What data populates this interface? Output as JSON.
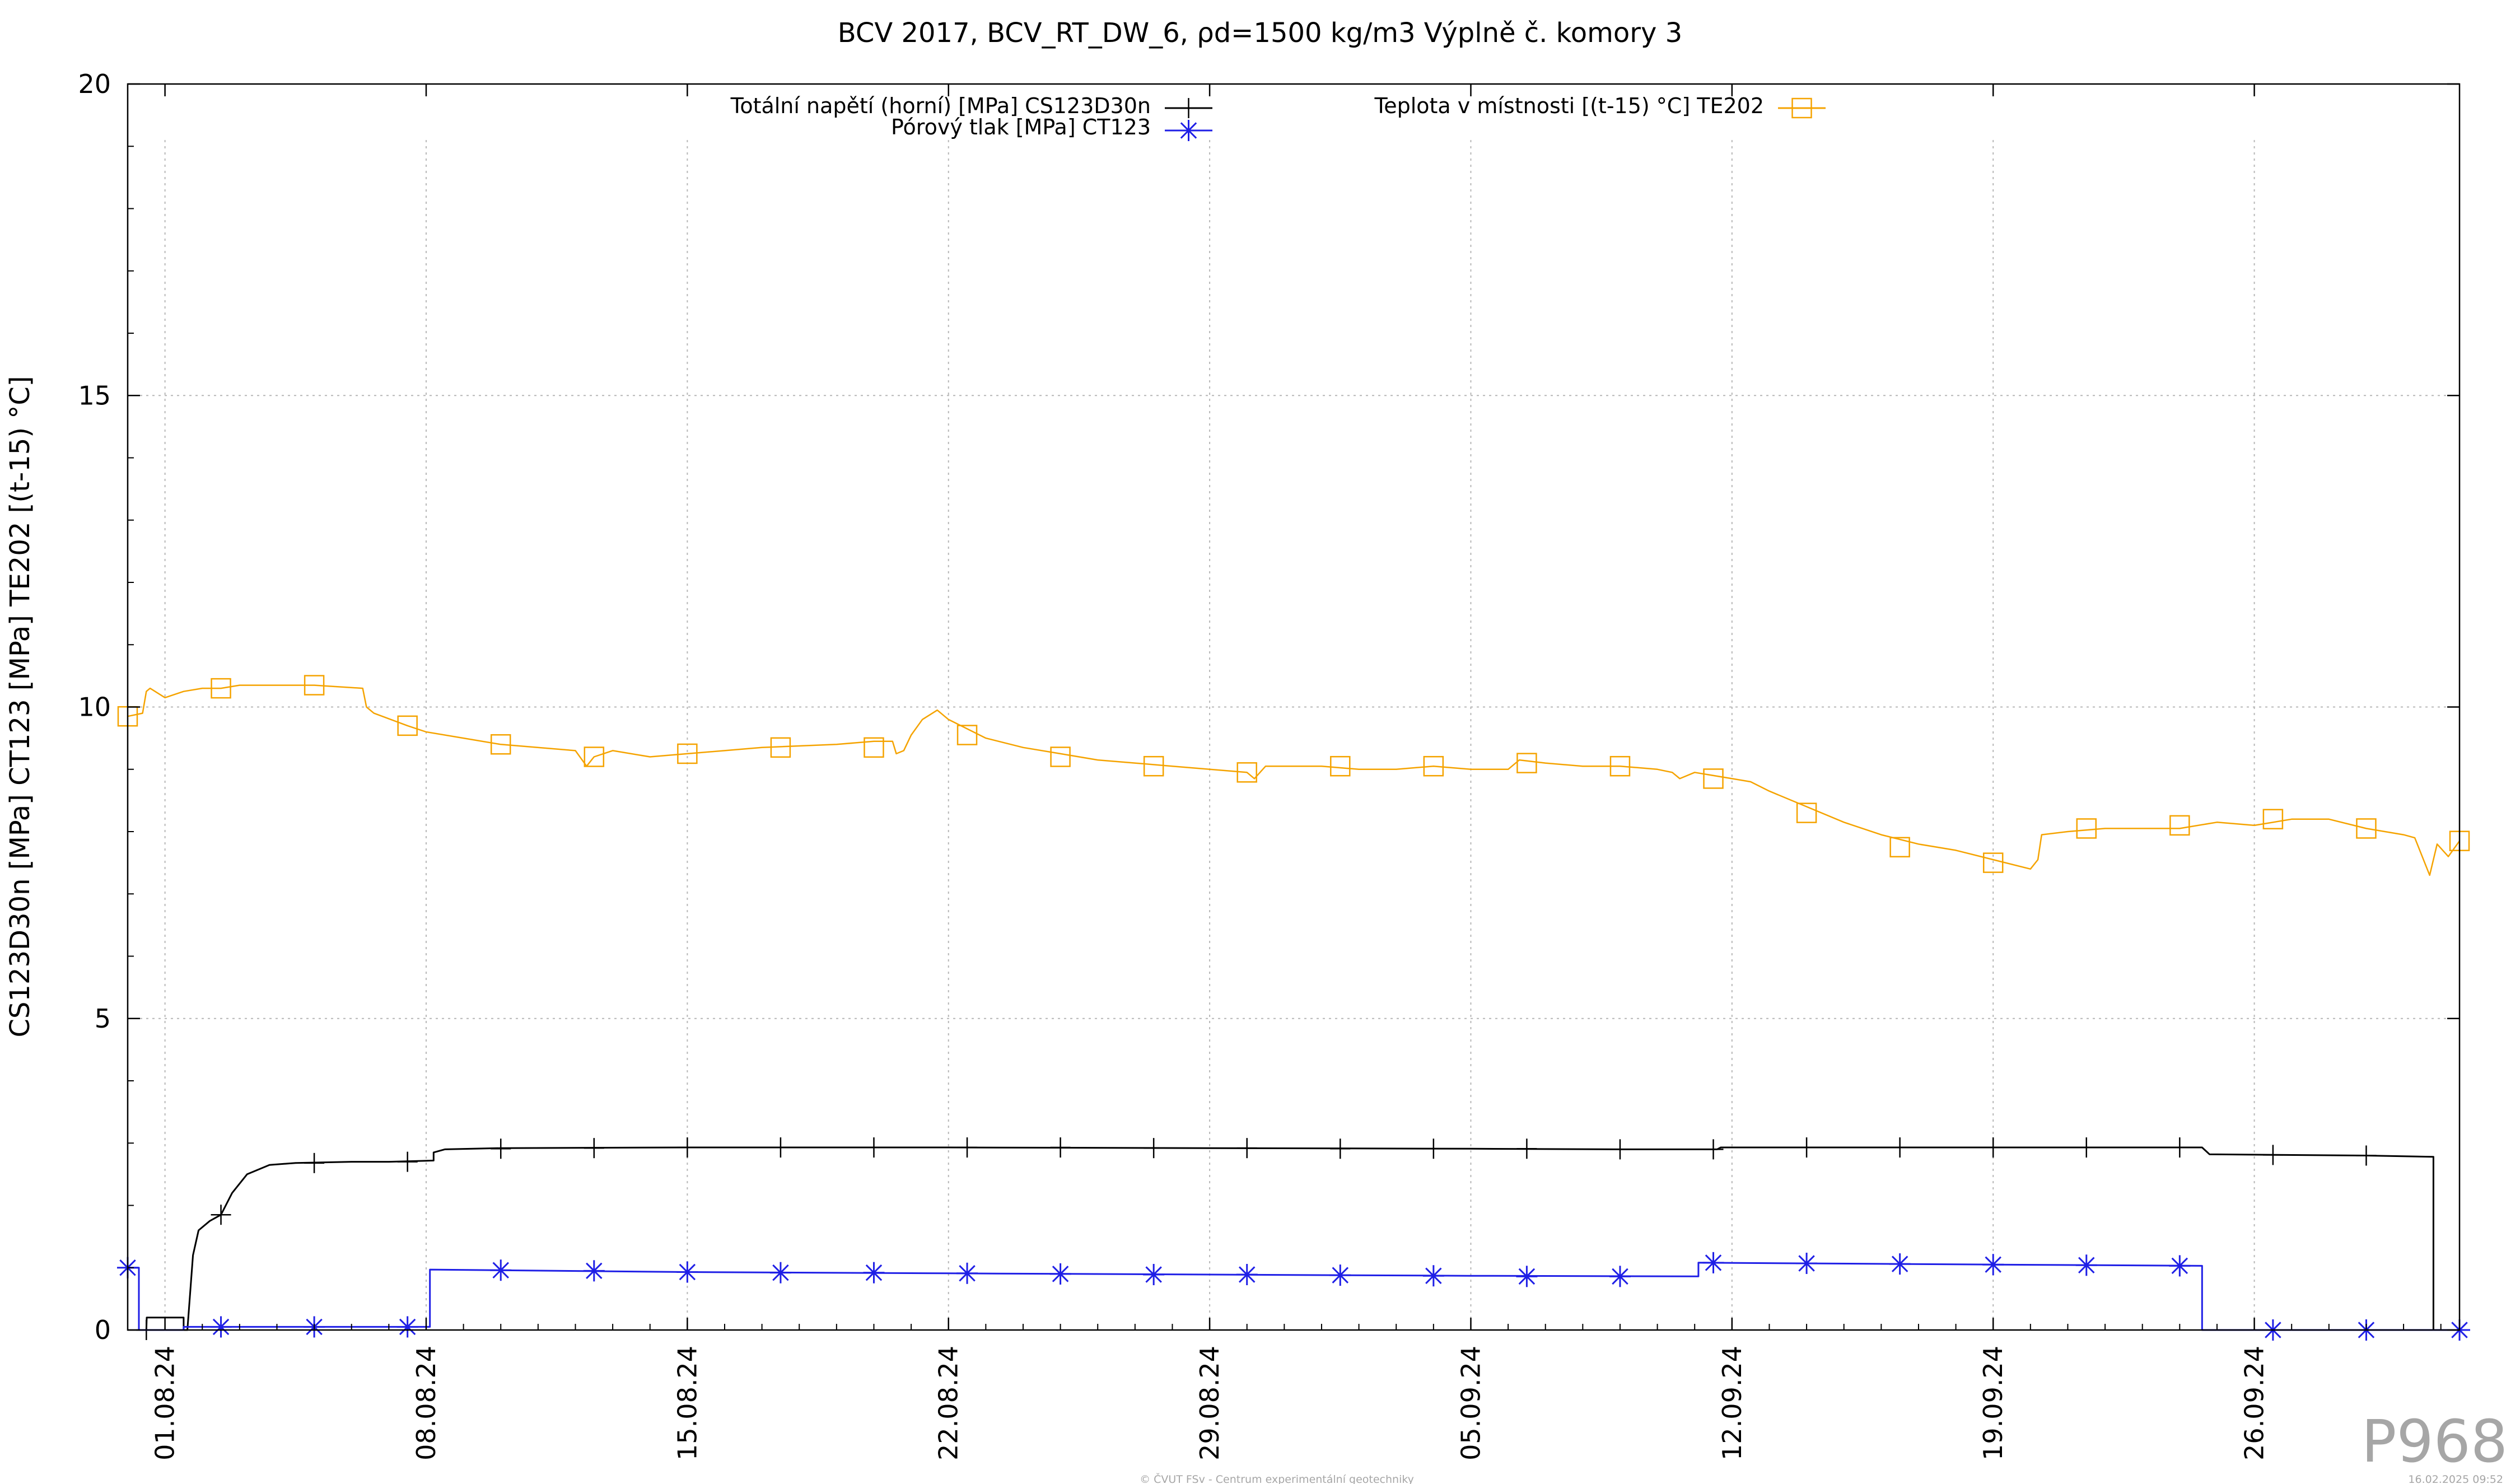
{
  "chart_data": {
    "type": "line",
    "title": "BCV 2017, BCV_RT_DW_6, ρd=1500 kg/m3 Výplně č. komory 3",
    "ylabel": "CS123D30n [MPa] CT123 [MPa] TE202 [(t-15) °C]",
    "xlabel": "",
    "ylim": [
      0,
      20
    ],
    "y_ticks": [
      "0",
      "5",
      "10",
      "15",
      "20"
    ],
    "xlim_days": [
      0,
      62.5
    ],
    "x_ticks": [
      {
        "label": "01.08.24",
        "day": 1
      },
      {
        "label": "08.08.24",
        "day": 8
      },
      {
        "label": "15.08.24",
        "day": 15
      },
      {
        "label": "22.08.24",
        "day": 22
      },
      {
        "label": "29.08.24",
        "day": 29
      },
      {
        "label": "05.09.24",
        "day": 36
      },
      {
        "label": "12.09.24",
        "day": 43
      },
      {
        "label": "19.09.24",
        "day": 50
      },
      {
        "label": "26.09.24",
        "day": 57
      }
    ],
    "grid": true,
    "legend_position": "top",
    "series": [
      {
        "name": "Totální napětí (horní) [MPa] CS123D30n",
        "color": "#000000",
        "marker": "plus",
        "step": false,
        "points": [
          [
            0.5,
            0
          ],
          [
            0.51,
            0.2
          ],
          [
            1.5,
            0.2
          ],
          [
            1.5,
            0
          ],
          [
            1.6,
            0
          ],
          [
            1.75,
            1.2
          ],
          [
            1.9,
            1.6
          ],
          [
            2.2,
            1.75
          ],
          [
            2.5,
            1.85
          ],
          [
            2.8,
            2.2
          ],
          [
            3.2,
            2.5
          ],
          [
            3.8,
            2.65
          ],
          [
            4.5,
            2.68
          ],
          [
            6,
            2.7
          ],
          [
            7,
            2.7
          ],
          [
            8.2,
            2.72
          ],
          [
            8.2,
            2.85
          ],
          [
            8.5,
            2.9
          ],
          [
            10,
            2.92
          ],
          [
            15,
            2.93
          ],
          [
            22,
            2.93
          ],
          [
            29,
            2.92
          ],
          [
            36,
            2.91
          ],
          [
            40,
            2.9
          ],
          [
            42.6,
            2.9
          ],
          [
            42.7,
            2.93
          ],
          [
            50,
            2.93
          ],
          [
            55.6,
            2.93
          ],
          [
            55.8,
            2.82
          ],
          [
            60,
            2.8
          ],
          [
            61.8,
            2.78
          ],
          [
            61.8,
            0
          ],
          [
            62.4,
            0
          ]
        ],
        "markers": [
          [
            0.5,
            0
          ],
          [
            2.5,
            1.85
          ],
          [
            5,
            2.68
          ],
          [
            7.5,
            2.7
          ],
          [
            10,
            2.91
          ],
          [
            12.5,
            2.92
          ],
          [
            15,
            2.93
          ],
          [
            17.5,
            2.93
          ],
          [
            20,
            2.93
          ],
          [
            22.5,
            2.93
          ],
          [
            25,
            2.93
          ],
          [
            27.5,
            2.92
          ],
          [
            30,
            2.92
          ],
          [
            32.5,
            2.91
          ],
          [
            35,
            2.91
          ],
          [
            37.5,
            2.91
          ],
          [
            40,
            2.9
          ],
          [
            42.5,
            2.9
          ],
          [
            45,
            2.93
          ],
          [
            47.5,
            2.93
          ],
          [
            50,
            2.93
          ],
          [
            52.5,
            2.93
          ],
          [
            55,
            2.93
          ],
          [
            57.5,
            2.81
          ],
          [
            60,
            2.8
          ]
        ]
      },
      {
        "name": "Pórový tlak [MPa] CT123",
        "color": "#1f1fe6",
        "marker": "star",
        "step": true,
        "points": [
          [
            0,
            1.0
          ],
          [
            0.3,
            1.0
          ],
          [
            0.3,
            0
          ],
          [
            1.5,
            0
          ],
          [
            1.5,
            0.05
          ],
          [
            8.1,
            0.05
          ],
          [
            8.1,
            0.97
          ],
          [
            15,
            0.93
          ],
          [
            22,
            0.91
          ],
          [
            29,
            0.89
          ],
          [
            36,
            0.87
          ],
          [
            42.1,
            0.86
          ],
          [
            42.1,
            1.08
          ],
          [
            50,
            1.05
          ],
          [
            55.6,
            1.03
          ],
          [
            55.6,
            0
          ],
          [
            62.5,
            0
          ]
        ],
        "markers": [
          [
            0,
            1.0
          ],
          [
            2.5,
            0.05
          ],
          [
            5,
            0.05
          ],
          [
            7.5,
            0.05
          ],
          [
            10,
            0.96
          ],
          [
            12.5,
            0.95
          ],
          [
            15,
            0.93
          ],
          [
            17.5,
            0.92
          ],
          [
            20,
            0.92
          ],
          [
            22.5,
            0.91
          ],
          [
            25,
            0.9
          ],
          [
            27.5,
            0.89
          ],
          [
            30,
            0.89
          ],
          [
            32.5,
            0.88
          ],
          [
            35,
            0.87
          ],
          [
            37.5,
            0.86
          ],
          [
            40,
            0.86
          ],
          [
            42.5,
            1.08
          ],
          [
            45,
            1.07
          ],
          [
            47.5,
            1.06
          ],
          [
            50,
            1.05
          ],
          [
            52.5,
            1.04
          ],
          [
            55,
            1.03
          ],
          [
            57.5,
            0
          ],
          [
            60,
            0
          ],
          [
            62.5,
            0
          ]
        ]
      },
      {
        "name": "Teplota v místnosti [(t-15) °C] TE202",
        "color": "#f5a300",
        "marker": "square",
        "step": false,
        "points": [
          [
            0,
            9.85
          ],
          [
            0.4,
            9.9
          ],
          [
            0.5,
            10.25
          ],
          [
            0.6,
            10.3
          ],
          [
            1,
            10.15
          ],
          [
            1.5,
            10.25
          ],
          [
            2,
            10.3
          ],
          [
            2.5,
            10.3
          ],
          [
            3,
            10.35
          ],
          [
            5,
            10.35
          ],
          [
            6.3,
            10.3
          ],
          [
            6.4,
            10.0
          ],
          [
            6.6,
            9.9
          ],
          [
            7.5,
            9.7
          ],
          [
            8,
            9.6
          ],
          [
            9,
            9.5
          ],
          [
            10,
            9.4
          ],
          [
            12,
            9.3
          ],
          [
            12.3,
            9.05
          ],
          [
            12.5,
            9.2
          ],
          [
            13,
            9.3
          ],
          [
            14,
            9.2
          ],
          [
            15,
            9.25
          ],
          [
            16,
            9.3
          ],
          [
            17,
            9.35
          ],
          [
            19,
            9.4
          ],
          [
            20,
            9.45
          ],
          [
            20.5,
            9.45
          ],
          [
            20.6,
            9.25
          ],
          [
            20.8,
            9.3
          ],
          [
            21,
            9.55
          ],
          [
            21.3,
            9.8
          ],
          [
            21.7,
            9.95
          ],
          [
            22,
            9.8
          ],
          [
            23,
            9.5
          ],
          [
            24,
            9.35
          ],
          [
            25,
            9.25
          ],
          [
            26,
            9.15
          ],
          [
            27,
            9.1
          ],
          [
            28,
            9.05
          ],
          [
            29,
            9.0
          ],
          [
            30,
            8.95
          ],
          [
            30.2,
            8.85
          ],
          [
            30.5,
            9.05
          ],
          [
            31,
            9.05
          ],
          [
            32,
            9.05
          ],
          [
            33,
            9.0
          ],
          [
            34,
            9.0
          ],
          [
            35,
            9.05
          ],
          [
            36,
            9.0
          ],
          [
            37,
            9.0
          ],
          [
            37.3,
            9.15
          ],
          [
            38,
            9.1
          ],
          [
            39,
            9.05
          ],
          [
            40,
            9.05
          ],
          [
            41,
            9.0
          ],
          [
            41.4,
            8.95
          ],
          [
            41.6,
            8.85
          ],
          [
            42,
            8.95
          ],
          [
            43,
            8.85
          ],
          [
            43.5,
            8.8
          ],
          [
            44,
            8.65
          ],
          [
            45,
            8.4
          ],
          [
            46,
            8.15
          ],
          [
            47,
            7.95
          ],
          [
            48,
            7.8
          ],
          [
            49,
            7.7
          ],
          [
            50,
            7.55
          ],
          [
            51,
            7.4
          ],
          [
            51.2,
            7.55
          ],
          [
            51.3,
            7.95
          ],
          [
            52,
            8.0
          ],
          [
            53,
            8.05
          ],
          [
            54,
            8.05
          ],
          [
            55,
            8.05
          ],
          [
            56,
            8.15
          ],
          [
            57,
            8.1
          ],
          [
            58,
            8.2
          ],
          [
            59,
            8.2
          ],
          [
            60,
            8.05
          ],
          [
            61,
            7.95
          ],
          [
            61.3,
            7.9
          ],
          [
            61.7,
            7.3
          ],
          [
            61.9,
            7.8
          ],
          [
            62.2,
            7.6
          ],
          [
            62.5,
            7.85
          ]
        ],
        "markers": [
          [
            0,
            9.85
          ],
          [
            2.5,
            10.3
          ],
          [
            5,
            10.35
          ],
          [
            7.5,
            9.7
          ],
          [
            10,
            9.4
          ],
          [
            12.5,
            9.2
          ],
          [
            15,
            9.25
          ],
          [
            17.5,
            9.35
          ],
          [
            20,
            9.35
          ],
          [
            22.5,
            9.55
          ],
          [
            25,
            9.2
          ],
          [
            27.5,
            9.05
          ],
          [
            30,
            8.95
          ],
          [
            32.5,
            9.05
          ],
          [
            35,
            9.05
          ],
          [
            37.5,
            9.1
          ],
          [
            40,
            9.05
          ],
          [
            42.5,
            8.85
          ],
          [
            45,
            8.3
          ],
          [
            47.5,
            7.75
          ],
          [
            50,
            7.5
          ],
          [
            52.5,
            8.05
          ],
          [
            55,
            8.1
          ],
          [
            57.5,
            8.2
          ],
          [
            60,
            8.05
          ],
          [
            62.5,
            7.85
          ]
        ]
      }
    ]
  },
  "watermark": "P968",
  "footer_center": "© ČVUT FSv - Centrum experimentální geotechniky",
  "footer_right": "16.02.2025 09:52"
}
